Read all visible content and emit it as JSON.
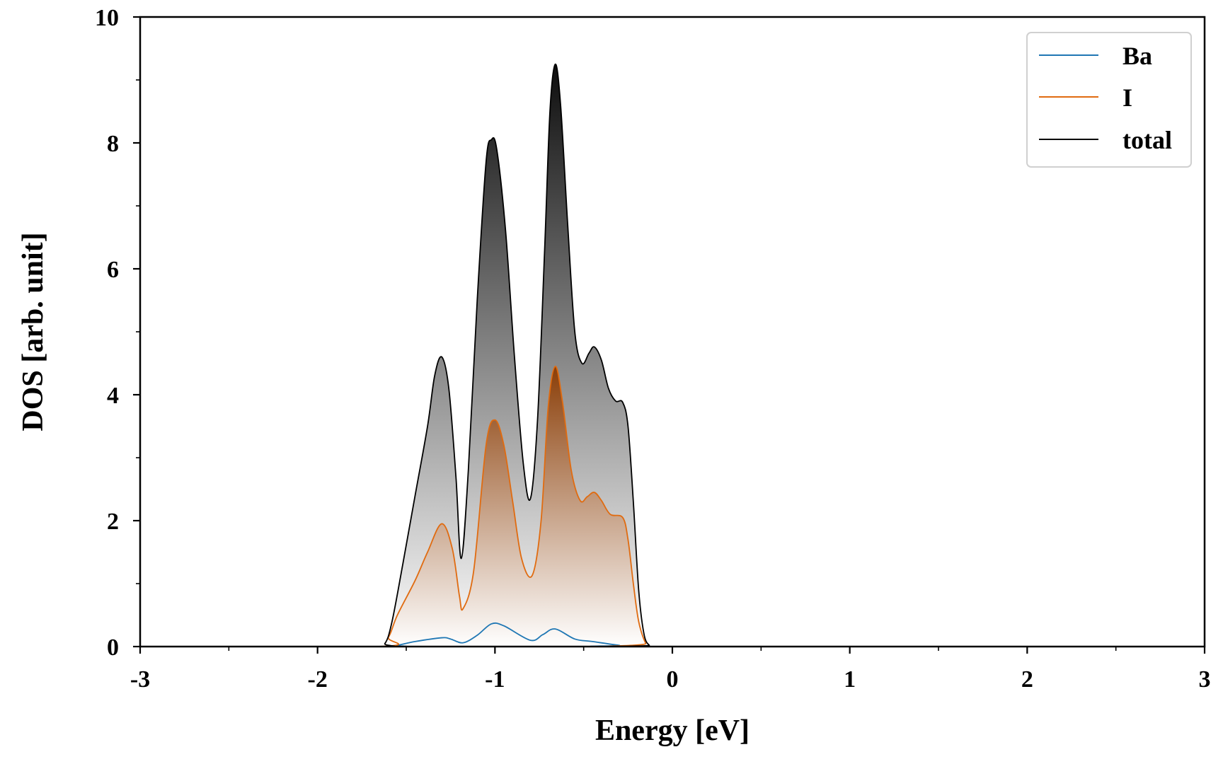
{
  "colors": {
    "ba": "#1f77b4",
    "i": "#e06b10",
    "i_fill_dark": "#8a3e08",
    "total": "#000000",
    "total_fill_dark": "#0d0d0d",
    "legend_border": "#d0d0d0"
  },
  "chart_data": {
    "type": "area",
    "xlabel": "Energy [eV]",
    "ylabel": "DOS [arb. unit]",
    "xlim": [
      -3,
      3
    ],
    "ylim": [
      0,
      10
    ],
    "x_ticks": [
      -3,
      -2,
      -1,
      0,
      1,
      2,
      3
    ],
    "x_tick_labels": [
      "-3",
      "-2",
      "-1",
      "0",
      "1",
      "2",
      "3"
    ],
    "y_ticks": [
      0,
      2,
      4,
      6,
      8,
      10
    ],
    "y_tick_labels": [
      "0",
      "2",
      "4",
      "6",
      "8",
      "10"
    ],
    "x_minor_step": 0.5,
    "y_minor_step": 1,
    "grid": false,
    "legend_position": "top-right",
    "series": [
      {
        "name": "Ba",
        "points": [
          [
            -3,
            0
          ],
          [
            -1.62,
            0
          ],
          [
            -1.55,
            0.02
          ],
          [
            -1.45,
            0.08
          ],
          [
            -1.3,
            0.14
          ],
          [
            -1.25,
            0.12
          ],
          [
            -1.18,
            0.06
          ],
          [
            -1.1,
            0.18
          ],
          [
            -1.02,
            0.36
          ],
          [
            -0.95,
            0.33
          ],
          [
            -0.8,
            0.1
          ],
          [
            -0.73,
            0.19
          ],
          [
            -0.66,
            0.28
          ],
          [
            -0.55,
            0.12
          ],
          [
            -0.45,
            0.08
          ],
          [
            -0.3,
            0.02
          ],
          [
            -0.2,
            0
          ],
          [
            3,
            0
          ]
        ]
      },
      {
        "name": "I",
        "points": [
          [
            -3,
            0
          ],
          [
            -1.66,
            0
          ],
          [
            -1.6,
            0.15
          ],
          [
            -1.55,
            0.5
          ],
          [
            -1.45,
            1.05
          ],
          [
            -1.38,
            1.5
          ],
          [
            -1.3,
            1.95
          ],
          [
            -1.24,
            1.55
          ],
          [
            -1.2,
            0.8
          ],
          [
            -1.18,
            0.6
          ],
          [
            -1.12,
            1.2
          ],
          [
            -1.05,
            3.2
          ],
          [
            -1.0,
            3.6
          ],
          [
            -0.95,
            3.2
          ],
          [
            -0.9,
            2.3
          ],
          [
            -0.85,
            1.4
          ],
          [
            -0.79,
            1.13
          ],
          [
            -0.74,
            2.0
          ],
          [
            -0.7,
            3.8
          ],
          [
            -0.66,
            4.45
          ],
          [
            -0.62,
            3.9
          ],
          [
            -0.57,
            2.8
          ],
          [
            -0.52,
            2.32
          ],
          [
            -0.48,
            2.38
          ],
          [
            -0.44,
            2.45
          ],
          [
            -0.4,
            2.32
          ],
          [
            -0.35,
            2.1
          ],
          [
            -0.28,
            2.05
          ],
          [
            -0.25,
            1.7
          ],
          [
            -0.22,
            1.0
          ],
          [
            -0.19,
            0.4
          ],
          [
            -0.15,
            0.05
          ],
          [
            -0.12,
            0
          ],
          [
            3,
            0
          ]
        ]
      },
      {
        "name": "total",
        "points": [
          [
            -3,
            0
          ],
          [
            -1.68,
            0
          ],
          [
            -1.62,
            0.05
          ],
          [
            -1.58,
            0.4
          ],
          [
            -1.52,
            1.3
          ],
          [
            -1.45,
            2.4
          ],
          [
            -1.38,
            3.5
          ],
          [
            -1.34,
            4.3
          ],
          [
            -1.3,
            4.6
          ],
          [
            -1.26,
            4.1
          ],
          [
            -1.22,
            2.7
          ],
          [
            -1.19,
            1.4
          ],
          [
            -1.15,
            2.8
          ],
          [
            -1.1,
            5.5
          ],
          [
            -1.05,
            7.7
          ],
          [
            -1.02,
            8.05
          ],
          [
            -0.99,
            7.9
          ],
          [
            -0.94,
            6.6
          ],
          [
            -0.89,
            4.6
          ],
          [
            -0.84,
            2.9
          ],
          [
            -0.8,
            2.35
          ],
          [
            -0.76,
            3.6
          ],
          [
            -0.72,
            6.3
          ],
          [
            -0.69,
            8.5
          ],
          [
            -0.66,
            9.25
          ],
          [
            -0.63,
            8.6
          ],
          [
            -0.59,
            6.7
          ],
          [
            -0.55,
            5.0
          ],
          [
            -0.51,
            4.5
          ],
          [
            -0.47,
            4.66
          ],
          [
            -0.44,
            4.76
          ],
          [
            -0.4,
            4.55
          ],
          [
            -0.36,
            4.1
          ],
          [
            -0.32,
            3.9
          ],
          [
            -0.28,
            3.88
          ],
          [
            -0.25,
            3.5
          ],
          [
            -0.22,
            2.3
          ],
          [
            -0.19,
            0.9
          ],
          [
            -0.16,
            0.2
          ],
          [
            -0.13,
            0.02
          ],
          [
            -0.1,
            0
          ],
          [
            3,
            0
          ]
        ]
      }
    ]
  }
}
